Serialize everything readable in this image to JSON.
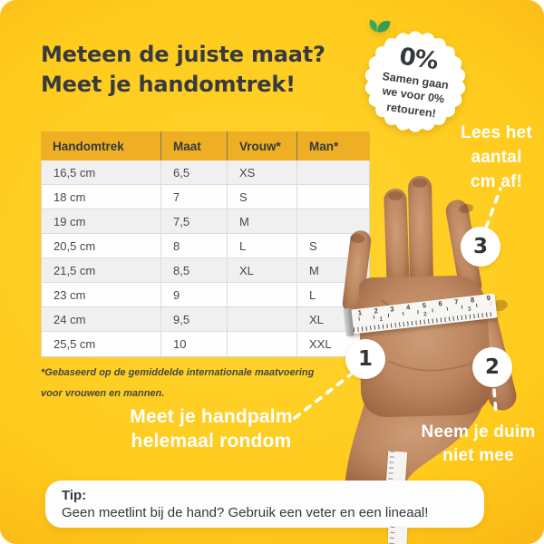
{
  "title": {
    "line1": "Meteen de juiste maat?",
    "line2": "Meet je handomtrek!"
  },
  "badge": {
    "percent": "0%",
    "lines": [
      "Samen gaan",
      "we voor 0%",
      "retouren!"
    ],
    "icon": "leaves-icon"
  },
  "table": {
    "headers": [
      "Handomtrek",
      "Maat",
      "Vrouw*",
      "Man*"
    ],
    "rows": [
      [
        "16,5 cm",
        "6,5",
        "XS",
        ""
      ],
      [
        "18 cm",
        "7",
        "S",
        ""
      ],
      [
        "19 cm",
        "7,5",
        "M",
        ""
      ],
      [
        "20,5 cm",
        "8",
        "L",
        "S"
      ],
      [
        "21,5 cm",
        "8,5",
        "XL",
        "M"
      ],
      [
        "23 cm",
        "9",
        "",
        "L"
      ],
      [
        "24 cm",
        "9,5",
        "",
        "XL"
      ],
      [
        "25,5 cm",
        "10",
        "",
        "XXL"
      ]
    ],
    "footnote_line1": "*Gebaseerd op de gemiddelde internationale maatvoering",
    "footnote_line2": "voor vrouwen en mannen."
  },
  "annotations": {
    "step1": {
      "number": "1",
      "label_line1": "Meet je handpalm",
      "label_line2": "helemaal rondom"
    },
    "step2": {
      "number": "2",
      "label_line1": "Neem je duim",
      "label_line2": "niet mee"
    },
    "step3": {
      "number": "3",
      "label_line1": "Lees het",
      "label_line2": "aantal",
      "label_line3": "cm af!"
    }
  },
  "tip": {
    "heading": "Tip:",
    "text": "Geen meetlint bij de hand? Gebruik een veter en een lineaal!"
  },
  "tape": {
    "numbers": [
      "1",
      "2",
      "3",
      "4",
      "5",
      "6",
      "7",
      "8",
      "9"
    ],
    "mid_numbers": [
      "1",
      "2",
      "3"
    ]
  },
  "colors": {
    "background_yellow": "#FFCB1C",
    "background_orange": "#F5A40E",
    "table_header_gold": "#EFAF25",
    "text_dark": "#373B3F",
    "leaf_green": "#2F9E56",
    "annotation_white": "#FFFFFF"
  }
}
